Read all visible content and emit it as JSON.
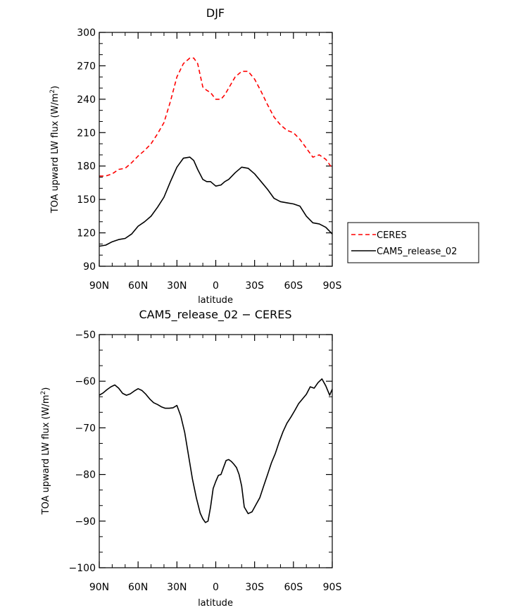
{
  "chart_data": [
    {
      "type": "line",
      "title": "DJF",
      "xlabel": "latitude",
      "ylabel": "TOA upward LW flux (W/m",
      "ylabel_sup": "2",
      "ylabel_close": ")",
      "xlim": [
        -90,
        90
      ],
      "ylim": [
        90,
        300
      ],
      "xticks": [
        -90,
        -60,
        -30,
        0,
        30,
        60,
        90
      ],
      "xtick_labels": [
        "90N",
        "60N",
        "30N",
        "0",
        "30S",
        "60S",
        "90S"
      ],
      "yticks": [
        90,
        120,
        150,
        180,
        210,
        240,
        270,
        300
      ],
      "ytick_labels": [
        "90",
        "120",
        "150",
        "180",
        "210",
        "240",
        "270",
        "300"
      ],
      "legend_position": "right",
      "series": [
        {
          "name": "CERES",
          "color": "#ff0000",
          "dashed": true,
          "x": [
            -90,
            -85,
            -80,
            -75,
            -70,
            -65,
            -60,
            -55,
            -50,
            -45,
            -40,
            -35,
            -30,
            -25,
            -20,
            -17,
            -14,
            -10,
            -7,
            -4,
            0,
            4,
            7,
            10,
            15,
            20,
            25,
            30,
            35,
            40,
            45,
            50,
            55,
            60,
            65,
            70,
            75,
            80,
            85,
            90
          ],
          "y": [
            171,
            171,
            173,
            177,
            178,
            183,
            189,
            194,
            200,
            209,
            219,
            238,
            260,
            272,
            277,
            277,
            272,
            251,
            248,
            246,
            240,
            240,
            244,
            250,
            260,
            265,
            265,
            258,
            247,
            235,
            224,
            217,
            212,
            210,
            204,
            196,
            188,
            190,
            186,
            178
          ]
        },
        {
          "name": "CAM5_release_02",
          "color": "#000000",
          "dashed": false,
          "x": [
            -90,
            -85,
            -80,
            -75,
            -70,
            -65,
            -60,
            -55,
            -50,
            -45,
            -40,
            -35,
            -30,
            -25,
            -20,
            -17,
            -14,
            -10,
            -7,
            -4,
            0,
            4,
            7,
            10,
            15,
            20,
            25,
            30,
            35,
            40,
            45,
            50,
            55,
            60,
            65,
            70,
            75,
            80,
            85,
            90
          ],
          "y": [
            108,
            109,
            112,
            114,
            115,
            119,
            126,
            130,
            135,
            143,
            152,
            166,
            179,
            187,
            188,
            185,
            177,
            168,
            166,
            166,
            162,
            163,
            166,
            168,
            174,
            179,
            178,
            173,
            166,
            159,
            151,
            148,
            147,
            146,
            144,
            135,
            129,
            128,
            125,
            119
          ]
        }
      ]
    },
    {
      "type": "line",
      "title": "CAM5_release_02 − CERES",
      "xlabel": "latitude",
      "ylabel": "TOA upward LW flux (W/m",
      "ylabel_sup": "2",
      "ylabel_close": ")",
      "xlim": [
        -90,
        90
      ],
      "ylim": [
        -100,
        -50
      ],
      "xticks": [
        -90,
        -60,
        -30,
        0,
        30,
        60,
        90
      ],
      "xtick_labels": [
        "90N",
        "60N",
        "30N",
        "0",
        "30S",
        "60S",
        "90S"
      ],
      "yticks": [
        -100,
        -90,
        -80,
        -70,
        -60,
        -50
      ],
      "ytick_labels": [
        "−100",
        "−90",
        "−80",
        "−70",
        "−60",
        "−50"
      ],
      "series": [
        {
          "name": "CAM5_release_02 - CERES",
          "color": "#000000",
          "dashed": false,
          "x": [
            -90,
            -87,
            -84,
            -81,
            -78,
            -75,
            -72,
            -69,
            -66,
            -63,
            -60,
            -57,
            -54,
            -51,
            -48,
            -45,
            -42,
            -39,
            -36,
            -33,
            -30,
            -27,
            -24,
            -21,
            -18,
            -15,
            -12,
            -10,
            -8,
            -6,
            -4,
            -2,
            0,
            2,
            4,
            6,
            8,
            10,
            12,
            14,
            16,
            18,
            20,
            22,
            25,
            28,
            31,
            34,
            37,
            40,
            43,
            46,
            49,
            52,
            55,
            58,
            61,
            64,
            67,
            70,
            73,
            76,
            79,
            82,
            85,
            88,
            90
          ],
          "y": [
            -63,
            -62.5,
            -61.8,
            -61.2,
            -60.8,
            -61.5,
            -62.6,
            -63,
            -62.7,
            -62.1,
            -61.6,
            -62,
            -62.8,
            -63.8,
            -64.6,
            -65,
            -65.5,
            -65.8,
            -65.8,
            -65.7,
            -65.2,
            -67.5,
            -71,
            -76,
            -81,
            -85,
            -88.3,
            -89.5,
            -90.3,
            -90,
            -87,
            -83,
            -81.5,
            -80.2,
            -80,
            -78.5,
            -77,
            -76.8,
            -77.2,
            -77.8,
            -78.5,
            -80,
            -82.5,
            -87,
            -88.4,
            -88,
            -86.5,
            -85,
            -82.5,
            -80,
            -77.5,
            -75.5,
            -73,
            -70.8,
            -69,
            -67.7,
            -66.3,
            -64.8,
            -63.8,
            -62.8,
            -61.2,
            -61.5,
            -60.3,
            -59.5,
            -61,
            -63,
            -61.7
          ]
        }
      ]
    }
  ]
}
